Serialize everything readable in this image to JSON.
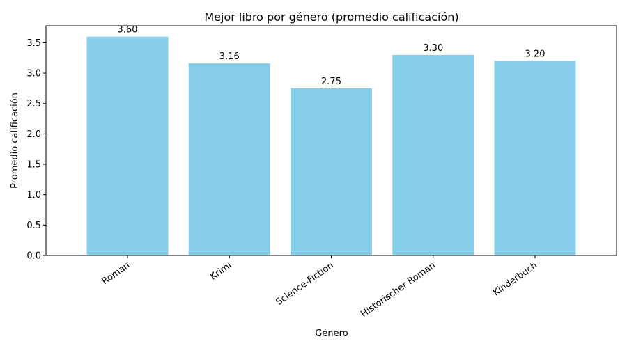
{
  "chart_data": {
    "type": "bar",
    "title": "Mejor libro por género (promedio calificación)",
    "xlabel": "Género",
    "ylabel": "Promedio calificación",
    "categories": [
      "Roman",
      "Krimi",
      "Science-Fiction",
      "Historischer Roman",
      "Kinderbuch"
    ],
    "values": [
      3.6,
      3.16,
      2.75,
      3.3,
      3.2
    ],
    "value_labels": [
      "3.60",
      "3.16",
      "2.75",
      "3.30",
      "3.20"
    ],
    "ylim": [
      0,
      3.78
    ],
    "yticks": [
      0.0,
      0.5,
      1.0,
      1.5,
      2.0,
      2.5,
      3.0,
      3.5
    ],
    "ytick_labels": [
      "0.0",
      "0.5",
      "1.0",
      "1.5",
      "2.0",
      "2.5",
      "3.0",
      "3.5"
    ],
    "bar_color": "#87CEEB",
    "grid": false,
    "legend": "none"
  }
}
